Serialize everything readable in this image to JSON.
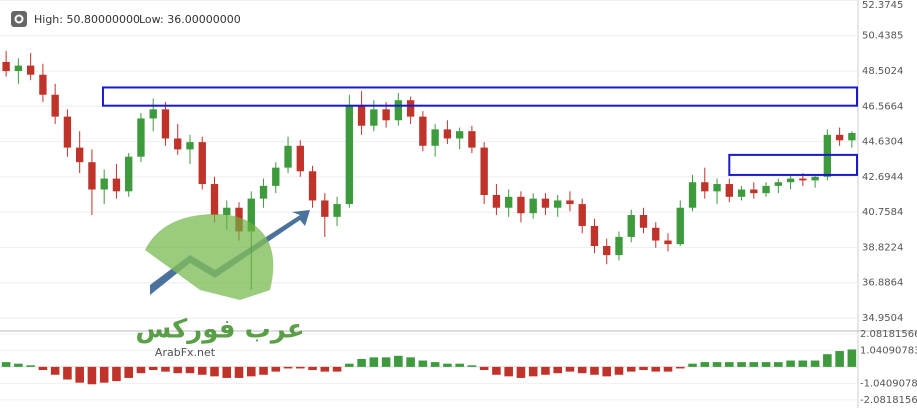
{
  "chart_data": {
    "type": "candlestick",
    "header": {
      "high": "High: 50.80000000",
      "low": "Low: 36.00000000"
    },
    "watermark": {
      "arabic": "عرب فوركس",
      "site": "ArabFx.net"
    },
    "up_color": "#3d9a3d",
    "down_color": "#c0332b",
    "zone_color": "#1a1acc",
    "ylim": [
      34.4,
      52.4
    ],
    "yticks": [
      52.3745,
      50.4385,
      48.5024,
      46.5664,
      44.6304,
      42.6944,
      40.7584,
      38.8224,
      36.8864,
      34.9504
    ],
    "candles": [
      [
        49.0,
        49.6,
        48.2,
        48.5
      ],
      [
        48.5,
        49.2,
        47.8,
        48.8
      ],
      [
        48.8,
        49.5,
        48.0,
        48.3
      ],
      [
        48.3,
        48.9,
        46.8,
        47.2
      ],
      [
        47.2,
        47.8,
        45.6,
        46.0
      ],
      [
        46.0,
        46.4,
        43.8,
        44.3
      ],
      [
        44.3,
        45.2,
        42.9,
        43.5
      ],
      [
        43.5,
        44.2,
        40.6,
        42.0
      ],
      [
        42.0,
        43.1,
        41.2,
        42.6
      ],
      [
        42.6,
        43.4,
        41.5,
        41.9
      ],
      [
        41.9,
        44.0,
        41.6,
        43.8
      ],
      [
        43.8,
        46.2,
        43.5,
        45.9
      ],
      [
        45.9,
        47.0,
        45.2,
        46.4
      ],
      [
        46.4,
        46.8,
        44.4,
        44.8
      ],
      [
        44.8,
        45.6,
        43.9,
        44.2
      ],
      [
        44.2,
        45.0,
        43.4,
        44.6
      ],
      [
        44.6,
        44.9,
        42.0,
        42.3
      ],
      [
        42.3,
        42.7,
        40.2,
        40.6
      ],
      [
        40.6,
        41.4,
        39.8,
        41.0
      ],
      [
        41.0,
        41.3,
        39.2,
        39.7
      ],
      [
        39.7,
        41.9,
        36.5,
        41.5
      ],
      [
        41.5,
        42.6,
        41.0,
        42.2
      ],
      [
        42.2,
        43.5,
        41.8,
        43.2
      ],
      [
        43.2,
        44.9,
        42.9,
        44.4
      ],
      [
        44.4,
        44.7,
        42.7,
        43.0
      ],
      [
        43.0,
        43.3,
        41.0,
        41.4
      ],
      [
        41.4,
        41.8,
        39.4,
        40.5
      ],
      [
        40.5,
        41.6,
        40.0,
        41.2
      ],
      [
        41.2,
        47.2,
        41.0,
        46.6
      ],
      [
        46.6,
        47.4,
        45.0,
        45.5
      ],
      [
        45.5,
        46.9,
        45.2,
        46.4
      ],
      [
        46.4,
        46.8,
        45.4,
        45.8
      ],
      [
        45.8,
        47.3,
        45.5,
        46.9
      ],
      [
        46.9,
        47.1,
        45.6,
        46.0
      ],
      [
        46.0,
        46.3,
        44.1,
        44.4
      ],
      [
        44.4,
        45.6,
        43.8,
        45.3
      ],
      [
        45.3,
        45.8,
        44.5,
        44.8
      ],
      [
        44.8,
        45.4,
        44.2,
        45.2
      ],
      [
        45.2,
        45.5,
        44.0,
        44.3
      ],
      [
        44.3,
        44.6,
        41.2,
        41.7
      ],
      [
        41.7,
        42.3,
        40.6,
        41.0
      ],
      [
        41.0,
        42.0,
        40.5,
        41.6
      ],
      [
        41.6,
        41.9,
        40.2,
        40.7
      ],
      [
        40.7,
        41.8,
        40.4,
        41.5
      ],
      [
        41.5,
        41.8,
        40.6,
        41.0
      ],
      [
        41.0,
        41.7,
        40.5,
        41.4
      ],
      [
        41.4,
        41.9,
        40.8,
        41.2
      ],
      [
        41.2,
        41.5,
        39.6,
        40.0
      ],
      [
        40.0,
        40.4,
        38.5,
        38.9
      ],
      [
        38.9,
        39.3,
        37.9,
        38.4
      ],
      [
        38.4,
        39.7,
        38.1,
        39.4
      ],
      [
        39.4,
        40.9,
        39.1,
        40.6
      ],
      [
        40.6,
        41.0,
        39.6,
        39.9
      ],
      [
        39.9,
        40.2,
        38.8,
        39.2
      ],
      [
        39.2,
        39.6,
        38.6,
        39.0
      ],
      [
        39.0,
        41.4,
        38.9,
        41.0
      ],
      [
        41.0,
        42.8,
        40.8,
        42.4
      ],
      [
        42.4,
        43.2,
        41.5,
        41.9
      ],
      [
        41.9,
        42.6,
        41.2,
        42.3
      ],
      [
        42.3,
        42.6,
        41.3,
        41.6
      ],
      [
        41.6,
        42.2,
        41.4,
        42.0
      ],
      [
        42.0,
        42.4,
        41.5,
        41.8
      ],
      [
        41.8,
        42.4,
        41.6,
        42.2
      ],
      [
        42.2,
        42.6,
        41.8,
        42.4
      ],
      [
        42.4,
        42.8,
        42.0,
        42.6
      ],
      [
        42.6,
        42.9,
        42.2,
        42.5
      ],
      [
        42.5,
        42.8,
        42.1,
        42.7
      ],
      [
        42.7,
        45.3,
        42.5,
        45.0
      ],
      [
        45.0,
        45.4,
        44.4,
        44.7
      ],
      [
        44.7,
        45.2,
        44.3,
        45.1
      ]
    ],
    "zones": [
      {
        "start": 8.4,
        "end": 70,
        "low": 46.6,
        "high": 47.6
      },
      {
        "start": 59.5,
        "end": 70,
        "low": 42.8,
        "high": 43.9
      }
    ],
    "macd": {
      "ylim": [
        -2.6,
        2.14
      ],
      "yticks": [
        2.08181566,
        1.04090783,
        -1.04090783,
        -2.08181566
      ],
      "values": [
        0.3,
        0.2,
        0.1,
        -0.2,
        -0.5,
        -0.8,
        -1.0,
        -1.1,
        -1.0,
        -0.9,
        -0.7,
        -0.4,
        -0.2,
        -0.3,
        -0.4,
        -0.4,
        -0.5,
        -0.6,
        -0.7,
        -0.7,
        -0.6,
        -0.5,
        -0.3,
        -0.1,
        -0.1,
        -0.2,
        -0.3,
        -0.3,
        0.2,
        0.5,
        0.6,
        0.6,
        0.7,
        0.6,
        0.4,
        0.3,
        0.2,
        0.2,
        0.1,
        -0.2,
        -0.5,
        -0.6,
        -0.7,
        -0.6,
        -0.5,
        -0.4,
        -0.3,
        -0.4,
        -0.5,
        -0.6,
        -0.5,
        -0.3,
        -0.2,
        -0.3,
        -0.3,
        -0.1,
        0.2,
        0.3,
        0.3,
        0.3,
        0.3,
        0.3,
        0.3,
        0.3,
        0.4,
        0.4,
        0.4,
        0.8,
        1.0,
        1.1
      ]
    }
  }
}
